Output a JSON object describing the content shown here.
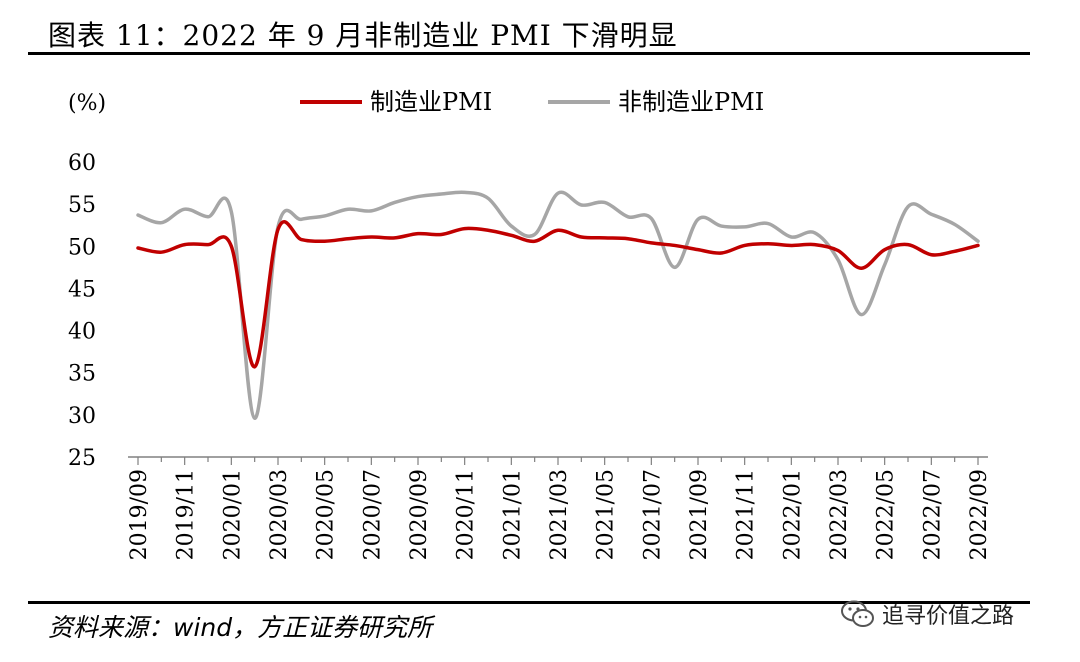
{
  "title": "图表 11：2022 年 9 月非制造业 PMI 下滑明显",
  "source": "资料来源：wind，方正证券研究所",
  "watermark": "追寻价值之路",
  "watermark_icon": "wechat-icon",
  "chart_data": {
    "type": "line",
    "title": "2022 年 9 月非制造业 PMI 下滑明显",
    "ylabel": "(%)",
    "xlabel": "",
    "ylim": [
      25,
      60
    ],
    "yticks": [
      25,
      30,
      35,
      40,
      45,
      50,
      55,
      60
    ],
    "x": [
      "2019/09",
      "2019/10",
      "2019/11",
      "2019/12",
      "2020/01",
      "2020/02",
      "2020/03",
      "2020/04",
      "2020/05",
      "2020/06",
      "2020/07",
      "2020/08",
      "2020/09",
      "2020/10",
      "2020/11",
      "2020/12",
      "2021/01",
      "2021/02",
      "2021/03",
      "2021/04",
      "2021/05",
      "2021/06",
      "2021/07",
      "2021/08",
      "2021/09",
      "2021/10",
      "2021/11",
      "2021/12",
      "2022/01",
      "2022/02",
      "2022/03",
      "2022/04",
      "2022/05",
      "2022/06",
      "2022/07",
      "2022/08",
      "2022/09"
    ],
    "xtick_labels": [
      "2019/09",
      "2019/11",
      "2020/01",
      "2020/03",
      "2020/05",
      "2020/07",
      "2020/09",
      "2020/11",
      "2021/01",
      "2021/03",
      "2021/05",
      "2021/07",
      "2021/09",
      "2021/11",
      "2022/01",
      "2022/03",
      "2022/05",
      "2022/07",
      "2022/09"
    ],
    "legend_position": "top-center",
    "grid": false,
    "series": [
      {
        "name": "制造业PMI",
        "color": "#c00000",
        "values": [
          49.8,
          49.3,
          50.2,
          50.2,
          50.0,
          35.7,
          52.0,
          50.8,
          50.6,
          50.9,
          51.1,
          51.0,
          51.5,
          51.4,
          52.1,
          51.9,
          51.3,
          50.6,
          51.9,
          51.1,
          51.0,
          50.9,
          50.4,
          50.1,
          49.6,
          49.2,
          50.1,
          50.3,
          50.1,
          50.2,
          49.5,
          47.4,
          49.6,
          50.2,
          49.0,
          49.4,
          50.1
        ]
      },
      {
        "name": "非制造业PMI",
        "color": "#a6a6a6",
        "values": [
          53.7,
          52.8,
          54.4,
          53.5,
          54.1,
          29.6,
          52.3,
          53.2,
          53.6,
          54.4,
          54.2,
          55.2,
          55.9,
          56.2,
          56.4,
          55.7,
          52.4,
          51.4,
          56.3,
          54.9,
          55.2,
          53.5,
          53.3,
          47.5,
          53.2,
          52.4,
          52.3,
          52.7,
          51.1,
          51.6,
          48.4,
          41.9,
          47.8,
          54.7,
          53.8,
          52.6,
          50.6
        ]
      }
    ]
  }
}
